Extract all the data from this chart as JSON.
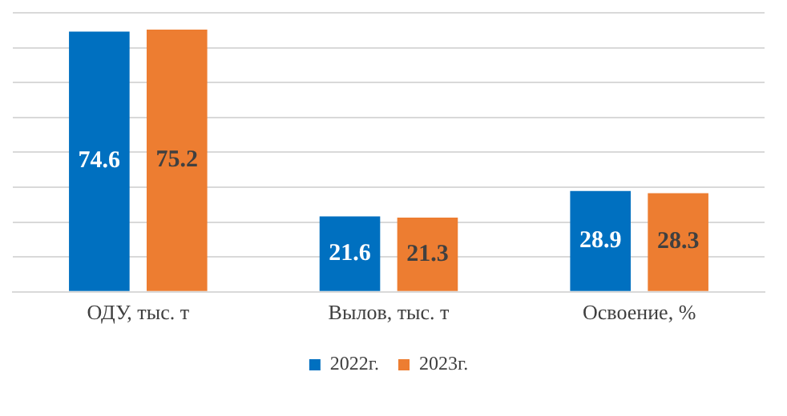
{
  "chart_data": {
    "type": "bar",
    "categories": [
      "ОДУ, тыс. т",
      "Вылов, тыс. т",
      "Освоение, %"
    ],
    "series": [
      {
        "name": "2022г.",
        "color": "#0070c0",
        "values": [
          74.6,
          21.6,
          28.9
        ]
      },
      {
        "name": "2023г.",
        "color": "#ed7d31",
        "values": [
          75.2,
          21.3,
          28.3
        ]
      }
    ],
    "ylim": [
      0,
      80
    ],
    "yticks": [
      {
        "value": 0,
        "label": null
      },
      {
        "value": 10,
        "label": null
      },
      {
        "value": 20,
        "label": null
      },
      {
        "value": 30,
        "label": null
      },
      {
        "value": 40,
        "label": null
      },
      {
        "value": 50,
        "label": null
      },
      {
        "value": 60,
        "label": null
      },
      {
        "value": 70,
        "label": null
      },
      {
        "value": 80,
        "label": null
      }
    ],
    "tick_labels": "x",
    "grid": "y",
    "legend": "bottom",
    "data_labels": true
  }
}
